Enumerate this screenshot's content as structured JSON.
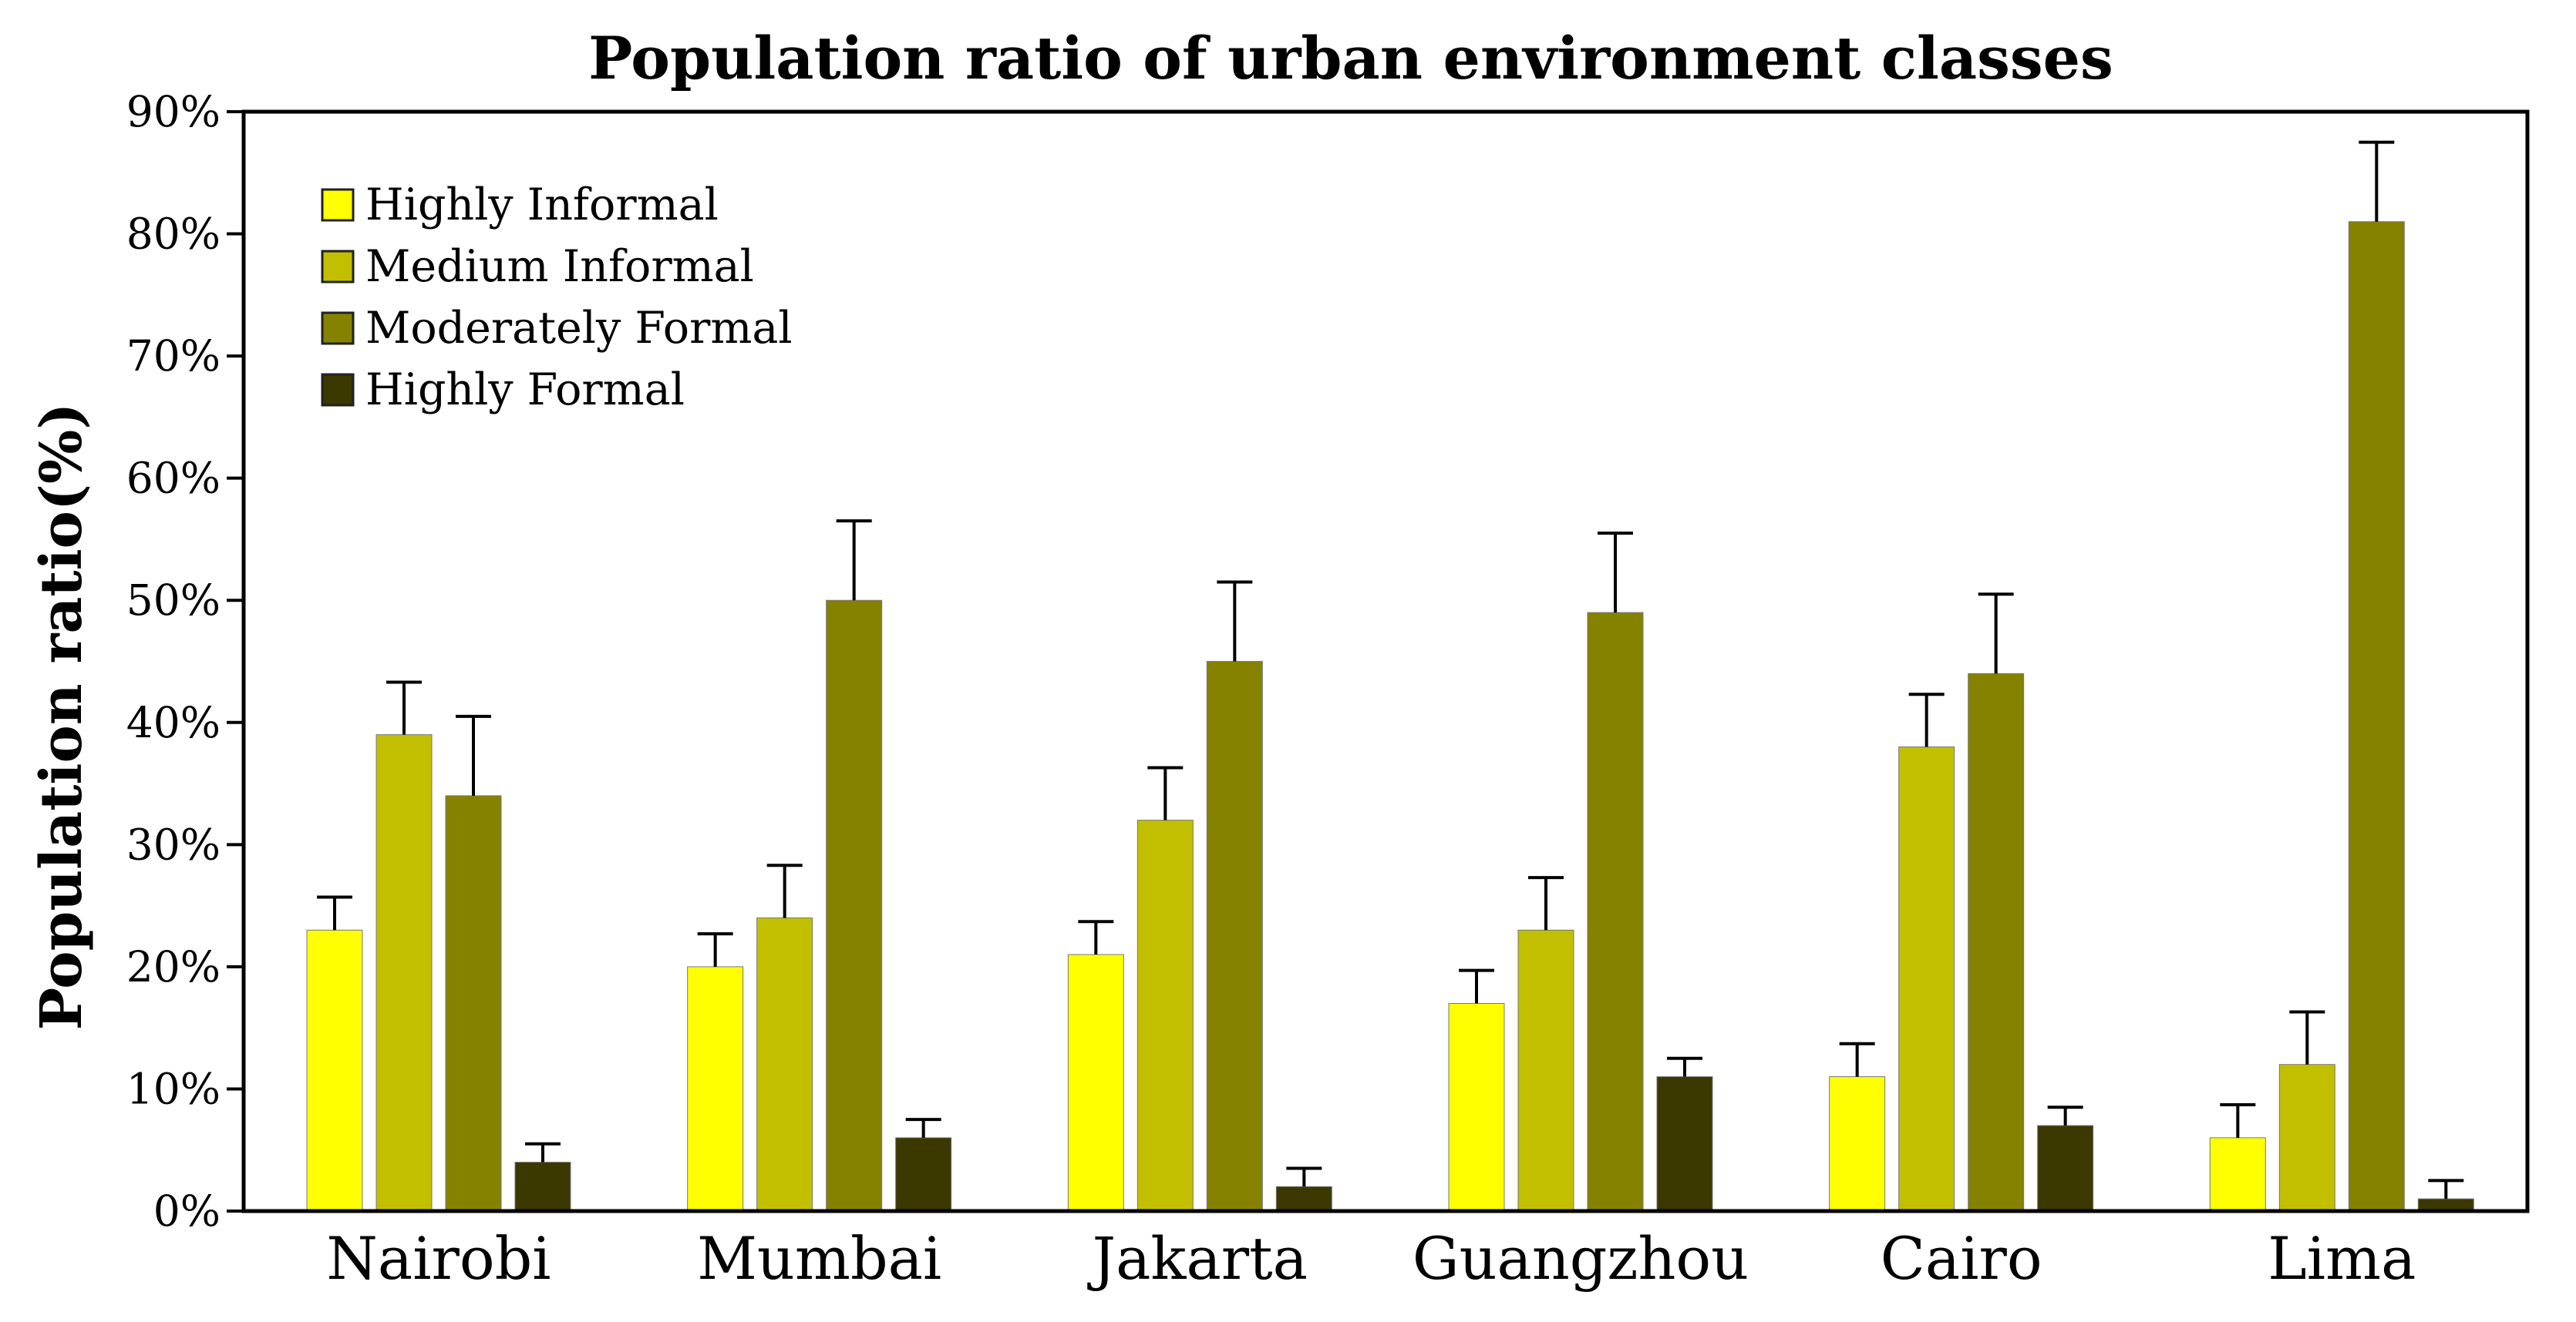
{
  "chart_data": {
    "type": "bar",
    "title": "Population ratio of urban environment classes",
    "xlabel": "",
    "ylabel": "Population ratio(%)",
    "ylim": [
      0,
      90
    ],
    "yticks": [
      "0%",
      "10%",
      "20%",
      "30%",
      "40%",
      "50%",
      "60%",
      "70%",
      "80%",
      "90%"
    ],
    "categories": [
      "Nairobi",
      "Mumbai",
      "Jakarta",
      "Guangzhou",
      "Cairo",
      "Lima"
    ],
    "legend_position": "top-left",
    "series": [
      {
        "name": "Highly Informal",
        "color": "#ffff00",
        "values": [
          23,
          20,
          21,
          17,
          11,
          6
        ],
        "errors": [
          2.7,
          2.7,
          2.7,
          2.7,
          2.7,
          2.7
        ]
      },
      {
        "name": "Medium Informal",
        "color": "#c2bf00",
        "values": [
          39,
          24,
          32,
          23,
          38,
          12
        ],
        "errors": [
          4.3,
          4.3,
          4.3,
          4.3,
          4.3,
          4.3
        ]
      },
      {
        "name": "Moderately Formal",
        "color": "#858200",
        "values": [
          34,
          50,
          45,
          49,
          44,
          81
        ],
        "errors": [
          6.5,
          6.5,
          6.5,
          6.5,
          6.5,
          6.5
        ]
      },
      {
        "name": "Highly Formal",
        "color": "#3b3800",
        "values": [
          4,
          6,
          2,
          11,
          7,
          1
        ],
        "errors": [
          1.5,
          1.5,
          1.5,
          1.5,
          1.5,
          1.5
        ]
      }
    ]
  }
}
